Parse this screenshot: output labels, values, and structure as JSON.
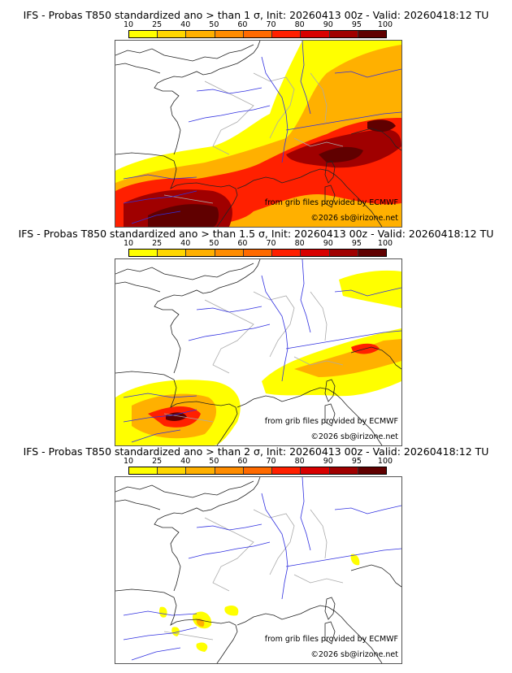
{
  "panels": [
    {
      "title": "IFS - Probas T850  standardized ano > than 1 σ, Init: 20260413 00z - Valid: 20260418:12 TU",
      "threshold": "1 σ",
      "intensity": "high"
    },
    {
      "title": "IFS - Probas T850  standardized ano > than 1.5 σ, Init: 20260413 00z - Valid: 20260418:12 TU",
      "threshold": "1.5 σ",
      "intensity": "medium"
    },
    {
      "title": "IFS - Probas T850  standardized ano > than 2 σ, Init: 20260413 00z - Valid: 20260418:12 TU",
      "threshold": "2 σ",
      "intensity": "low"
    }
  ],
  "colorbar": {
    "labels": [
      "10",
      "25",
      "40",
      "50",
      "60",
      "70",
      "80",
      "90",
      "95",
      "100"
    ],
    "colors": [
      "#ffff00",
      "#ffd700",
      "#ffb000",
      "#ff8c00",
      "#ff6a00",
      "#ff2000",
      "#d80000",
      "#a00000",
      "#600000"
    ]
  },
  "credits": {
    "source": "from grib files provided by ECMWF",
    "copyright": "©2026 sb@irizone.net"
  }
}
